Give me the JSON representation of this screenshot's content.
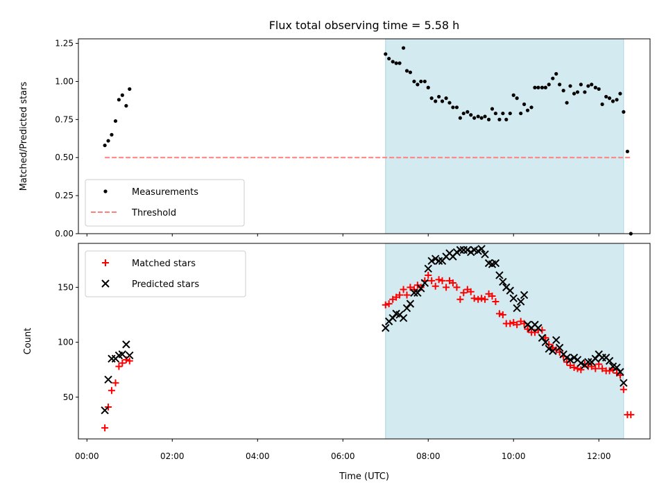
{
  "chart_data": [
    {
      "type": "scatter",
      "title": "Flux total observing time = 5.58 h",
      "xlabel": "",
      "ylabel": "Matched/Predicted stars",
      "xlim": [
        -0.2,
        13.2
      ],
      "ylim": [
        0.0,
        1.28
      ],
      "yticks": [
        0.0,
        0.25,
        0.5,
        0.75,
        1.0,
        1.25
      ],
      "ytick_labels": [
        "0.00",
        "0.25",
        "0.50",
        "0.75",
        "1.00",
        "1.25"
      ],
      "shaded_span": {
        "x0": 7.0,
        "x1": 12.58,
        "color": "#d2eaf0"
      },
      "legend_position": "lower-left",
      "series": [
        {
          "name": "Measurements",
          "marker": "dot",
          "color": "#000000",
          "points": [
            [
              0.42,
              0.58
            ],
            [
              0.5,
              0.61
            ],
            [
              0.58,
              0.65
            ],
            [
              0.67,
              0.74
            ],
            [
              0.75,
              0.88
            ],
            [
              0.83,
              0.91
            ],
            [
              0.92,
              0.84
            ],
            [
              1.0,
              0.95
            ],
            [
              7.0,
              1.18
            ],
            [
              7.08,
              1.15
            ],
            [
              7.17,
              1.13
            ],
            [
              7.25,
              1.12
            ],
            [
              7.33,
              1.12
            ],
            [
              7.42,
              1.22
            ],
            [
              7.5,
              1.07
            ],
            [
              7.58,
              1.06
            ],
            [
              7.67,
              1.0
            ],
            [
              7.75,
              0.98
            ],
            [
              7.83,
              1.0
            ],
            [
              7.92,
              1.0
            ],
            [
              8.0,
              0.96
            ],
            [
              8.08,
              0.89
            ],
            [
              8.17,
              0.87
            ],
            [
              8.25,
              0.9
            ],
            [
              8.33,
              0.87
            ],
            [
              8.42,
              0.89
            ],
            [
              8.5,
              0.86
            ],
            [
              8.58,
              0.83
            ],
            [
              8.67,
              0.83
            ],
            [
              8.75,
              0.76
            ],
            [
              8.83,
              0.79
            ],
            [
              8.92,
              0.8
            ],
            [
              9.0,
              0.78
            ],
            [
              9.08,
              0.76
            ],
            [
              9.17,
              0.77
            ],
            [
              9.25,
              0.76
            ],
            [
              9.33,
              0.77
            ],
            [
              9.42,
              0.75
            ],
            [
              9.5,
              0.82
            ],
            [
              9.58,
              0.79
            ],
            [
              9.67,
              0.75
            ],
            [
              9.75,
              0.79
            ],
            [
              9.83,
              0.75
            ],
            [
              9.92,
              0.79
            ],
            [
              10.0,
              0.91
            ],
            [
              10.08,
              0.89
            ],
            [
              10.17,
              0.79
            ],
            [
              10.25,
              0.85
            ],
            [
              10.33,
              0.81
            ],
            [
              10.42,
              0.83
            ],
            [
              10.5,
              0.96
            ],
            [
              10.58,
              0.96
            ],
            [
              10.67,
              0.96
            ],
            [
              10.75,
              0.96
            ],
            [
              10.83,
              0.98
            ],
            [
              10.92,
              1.02
            ],
            [
              11.0,
              1.05
            ],
            [
              11.08,
              0.98
            ],
            [
              11.17,
              0.94
            ],
            [
              11.25,
              0.86
            ],
            [
              11.33,
              0.97
            ],
            [
              11.42,
              0.92
            ],
            [
              11.5,
              0.93
            ],
            [
              11.58,
              0.98
            ],
            [
              11.67,
              0.93
            ],
            [
              11.75,
              0.97
            ],
            [
              11.83,
              0.98
            ],
            [
              11.92,
              0.96
            ],
            [
              12.0,
              0.95
            ],
            [
              12.08,
              0.85
            ],
            [
              12.17,
              0.9
            ],
            [
              12.25,
              0.89
            ],
            [
              12.33,
              0.87
            ],
            [
              12.42,
              0.88
            ],
            [
              12.5,
              0.92
            ],
            [
              12.58,
              0.8
            ],
            [
              12.67,
              0.54
            ],
            [
              12.75,
              0.0
            ]
          ]
        },
        {
          "name": "Threshold",
          "marker": "dashed-line",
          "color": "#ff7f7f",
          "points": [
            [
              0.42,
              0.5
            ],
            [
              12.75,
              0.5
            ]
          ]
        }
      ]
    },
    {
      "type": "scatter",
      "title": "",
      "xlabel": "Time (UTC)",
      "ylabel": "Count",
      "xlim": [
        -0.2,
        13.2
      ],
      "ylim": [
        12,
        190
      ],
      "xticks": [
        0,
        2,
        4,
        6,
        8,
        10,
        12
      ],
      "xtick_labels": [
        "00:00",
        "02:00",
        "04:00",
        "06:00",
        "08:00",
        "10:00",
        "12:00"
      ],
      "yticks": [
        50,
        100,
        150
      ],
      "ytick_labels": [
        "50",
        "100",
        "150"
      ],
      "shaded_span": {
        "x0": 7.0,
        "x1": 12.58,
        "color": "#d2eaf0"
      },
      "legend_position": "upper-left",
      "series": [
        {
          "name": "Matched stars",
          "marker": "plus",
          "color": "#ff0000",
          "points": [
            [
              0.42,
              22
            ],
            [
              0.5,
              41
            ],
            [
              0.58,
              56
            ],
            [
              0.67,
              63
            ],
            [
              0.75,
              78
            ],
            [
              0.83,
              81
            ],
            [
              0.92,
              84
            ],
            [
              1.0,
              83
            ],
            [
              7.0,
              134
            ],
            [
              7.08,
              135
            ],
            [
              7.17,
              139
            ],
            [
              7.25,
              141
            ],
            [
              7.33,
              143
            ],
            [
              7.42,
              148
            ],
            [
              7.5,
              143
            ],
            [
              7.58,
              150
            ],
            [
              7.67,
              148
            ],
            [
              7.75,
              152
            ],
            [
              7.83,
              150
            ],
            [
              7.92,
              156
            ],
            [
              8.0,
              161
            ],
            [
              8.08,
              156
            ],
            [
              8.17,
              151
            ],
            [
              8.25,
              157
            ],
            [
              8.33,
              156
            ],
            [
              8.42,
              150
            ],
            [
              8.5,
              156
            ],
            [
              8.58,
              154
            ],
            [
              8.67,
              150
            ],
            [
              8.75,
              139
            ],
            [
              8.83,
              145
            ],
            [
              8.92,
              148
            ],
            [
              9.0,
              146
            ],
            [
              9.08,
              140
            ],
            [
              9.17,
              139
            ],
            [
              9.25,
              140
            ],
            [
              9.33,
              139
            ],
            [
              9.42,
              144
            ],
            [
              9.5,
              142
            ],
            [
              9.58,
              137
            ],
            [
              9.67,
              126
            ],
            [
              9.75,
              125
            ],
            [
              9.83,
              117
            ],
            [
              9.92,
              117
            ],
            [
              10.0,
              118
            ],
            [
              10.08,
              116
            ],
            [
              10.17,
              119
            ],
            [
              10.25,
              117
            ],
            [
              10.33,
              112
            ],
            [
              10.42,
              109
            ],
            [
              10.5,
              109
            ],
            [
              10.58,
              111
            ],
            [
              10.67,
              111
            ],
            [
              10.75,
              104
            ],
            [
              10.83,
              98
            ],
            [
              10.92,
              95
            ],
            [
              11.0,
              93
            ],
            [
              11.08,
              91
            ],
            [
              11.17,
              87
            ],
            [
              11.25,
              82
            ],
            [
              11.33,
              79
            ],
            [
              11.42,
              77
            ],
            [
              11.5,
              76
            ],
            [
              11.58,
              75
            ],
            [
              11.67,
              80
            ],
            [
              11.75,
              78
            ],
            [
              11.83,
              78
            ],
            [
              11.92,
              76
            ],
            [
              12.0,
              80
            ],
            [
              12.08,
              76
            ],
            [
              12.17,
              74
            ],
            [
              12.25,
              74
            ],
            [
              12.33,
              75
            ],
            [
              12.42,
              72
            ],
            [
              12.5,
              70
            ],
            [
              12.58,
              57
            ],
            [
              12.67,
              34
            ],
            [
              12.75,
              34
            ]
          ]
        },
        {
          "name": "Predicted stars",
          "marker": "x",
          "color": "#000000",
          "points": [
            [
              0.42,
              38
            ],
            [
              0.5,
              66
            ],
            [
              0.58,
              85
            ],
            [
              0.67,
              85
            ],
            [
              0.75,
              88
            ],
            [
              0.83,
              89
            ],
            [
              0.92,
              98
            ],
            [
              1.0,
              88
            ],
            [
              7.0,
              113
            ],
            [
              7.08,
              119
            ],
            [
              7.17,
              122
            ],
            [
              7.25,
              126
            ],
            [
              7.33,
              125
            ],
            [
              7.42,
              122
            ],
            [
              7.5,
              131
            ],
            [
              7.58,
              135
            ],
            [
              7.67,
              145
            ],
            [
              7.75,
              145
            ],
            [
              7.83,
              149
            ],
            [
              7.92,
              154
            ],
            [
              8.0,
              167
            ],
            [
              8.08,
              174
            ],
            [
              8.17,
              176
            ],
            [
              8.25,
              174
            ],
            [
              8.33,
              174
            ],
            [
              8.42,
              178
            ],
            [
              8.5,
              181
            ],
            [
              8.58,
              178
            ],
            [
              8.67,
              182
            ],
            [
              8.75,
              184
            ],
            [
              8.83,
              184
            ],
            [
              8.92,
              184
            ],
            [
              9.0,
              182
            ],
            [
              9.08,
              184
            ],
            [
              9.17,
              183
            ],
            [
              9.25,
              185
            ],
            [
              9.33,
              180
            ],
            [
              9.42,
              172
            ],
            [
              9.5,
              171
            ],
            [
              9.58,
              172
            ],
            [
              9.67,
              161
            ],
            [
              9.75,
              155
            ],
            [
              9.83,
              150
            ],
            [
              9.92,
              147
            ],
            [
              10.0,
              140
            ],
            [
              10.08,
              131
            ],
            [
              10.17,
              137
            ],
            [
              10.25,
              143
            ],
            [
              10.33,
              116
            ],
            [
              10.42,
              113
            ],
            [
              10.5,
              116
            ],
            [
              10.58,
              113
            ],
            [
              10.67,
              104
            ],
            [
              10.75,
              100
            ],
            [
              10.83,
              94
            ],
            [
              10.92,
              92
            ],
            [
              11.0,
              102
            ],
            [
              11.08,
              95
            ],
            [
              11.17,
              89
            ],
            [
              11.25,
              86
            ],
            [
              11.33,
              84
            ],
            [
              11.42,
              86
            ],
            [
              11.5,
              84
            ],
            [
              11.58,
              81
            ],
            [
              11.67,
              79
            ],
            [
              11.75,
              82
            ],
            [
              11.83,
              82
            ],
            [
              11.92,
              85
            ],
            [
              12.0,
              89
            ],
            [
              12.08,
              86
            ],
            [
              12.17,
              86
            ],
            [
              12.25,
              83
            ],
            [
              12.33,
              78
            ],
            [
              12.42,
              77
            ],
            [
              12.5,
              73
            ],
            [
              12.58,
              63
            ]
          ]
        }
      ]
    }
  ]
}
